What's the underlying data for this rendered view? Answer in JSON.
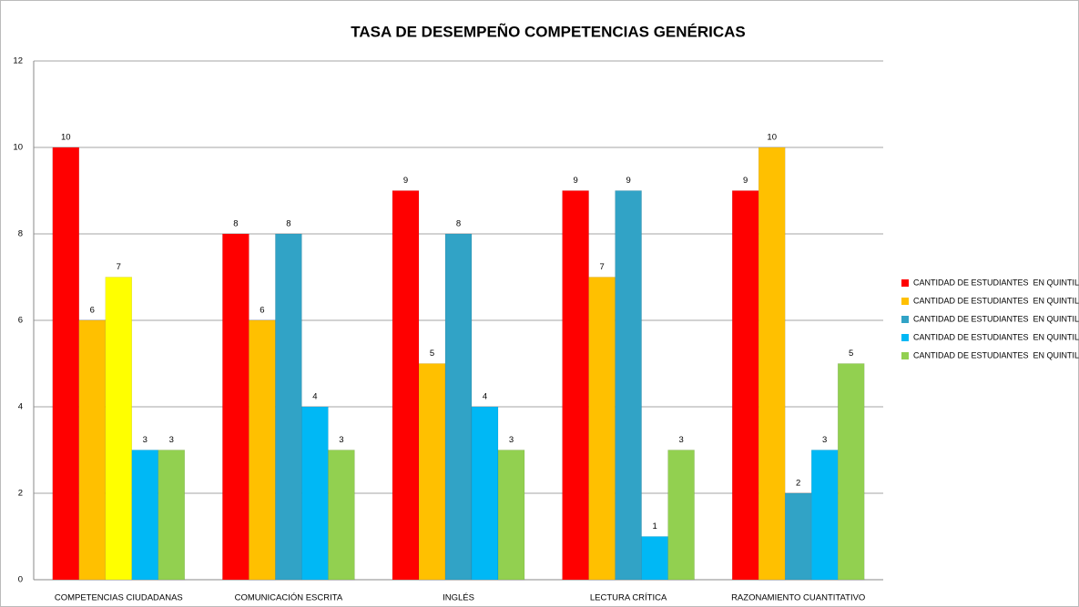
{
  "chart_data": {
    "type": "bar",
    "title": "TASA DE DESEMPEÑO COMPETENCIAS GENÉRICAS",
    "categories": [
      "COMPETENCIAS CIUDADANAS",
      "COMUNICACIÓN ESCRITA",
      "INGLÉS",
      "LECTURA CRÍTICA",
      "RAZONAMIENTO CUANTITATIVO"
    ],
    "series": [
      {
        "name": "CANTIDAD DE ESTUDIANTES  EN QUINTIL  I",
        "color": "#ff0000",
        "values": [
          10,
          8,
          9,
          9,
          9
        ]
      },
      {
        "name": "CANTIDAD DE ESTUDIANTES  EN QUINTIL  II",
        "color": "#ffc000",
        "values": [
          6,
          6,
          5,
          7,
          10
        ]
      },
      {
        "name": "CANTIDAD DE ESTUDIANTES  EN QUINTIL  III",
        "color": "#31a3c6",
        "colors": [
          "#ffff00",
          "#31a3c6",
          "#31a3c6",
          "#31a3c6",
          "#31a3c6"
        ],
        "values": [
          7,
          8,
          8,
          9,
          2
        ]
      },
      {
        "name": "CANTIDAD DE ESTUDIANTES  EN QUINTIL  IV",
        "color": "#00b8f5",
        "values": [
          3,
          4,
          4,
          1,
          3
        ]
      },
      {
        "name": "CANTIDAD DE ESTUDIANTES  EN QUINTIL  V",
        "color": "#92d050",
        "values": [
          3,
          3,
          3,
          3,
          5
        ]
      }
    ],
    "ylim": [
      0,
      12
    ],
    "yticks": [
      0,
      2,
      4,
      6,
      8,
      10,
      12
    ],
    "grid": true,
    "legend": "right"
  }
}
